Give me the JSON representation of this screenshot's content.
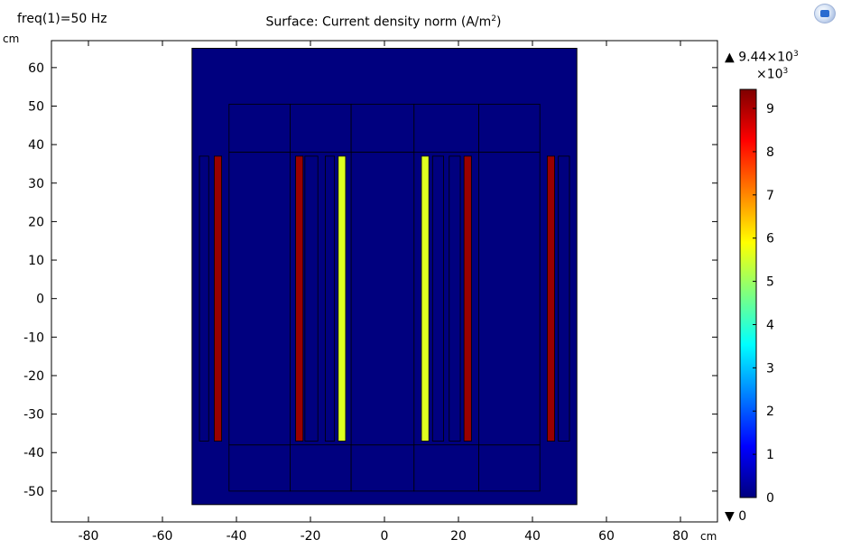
{
  "header": {
    "freq_label": "freq(1)=50 Hz",
    "title_main": "Surface: Current density norm (A/m",
    "title_sup": "2",
    "title_end": ")"
  },
  "axes": {
    "y_unit": "cm",
    "x_unit": "cm"
  },
  "colorbar": {
    "max_label": "9.44×10",
    "max_exp": "3",
    "scale_label": "×10",
    "scale_exp": "3",
    "min_label": "0",
    "ticks": [
      "0",
      "1",
      "2",
      "3",
      "4",
      "5",
      "6",
      "7",
      "8",
      "9"
    ],
    "colormap": [
      "#00007f",
      "#0000ff",
      "#007fff",
      "#00ffff",
      "#7fff7f",
      "#ffff00",
      "#ff7f00",
      "#ff0000",
      "#7f0000"
    ]
  },
  "chart_data": {
    "type": "heatmap",
    "title": "Surface: Current density norm (A/m²)",
    "xlim": [
      -90,
      90
    ],
    "ylim": [
      -58,
      67
    ],
    "xticks": [
      -80,
      -60,
      -40,
      -20,
      0,
      20,
      40,
      60,
      80
    ],
    "yticks": [
      -50,
      -40,
      -30,
      -20,
      -10,
      0,
      10,
      20,
      30,
      40,
      50,
      60
    ],
    "background_value_color": "#00007f",
    "domain_outline": {
      "x": [
        -52,
        52
      ],
      "y": [
        -53.5,
        65
      ]
    },
    "yoke_blocks": [
      {
        "x": [
          -42,
          -25.5
        ],
        "y": [
          38,
          50.5
        ]
      },
      {
        "x": [
          -25.5,
          -9
        ],
        "y": [
          38,
          50.5
        ]
      },
      {
        "x": [
          -9,
          8
        ],
        "y": [
          38,
          50.5
        ]
      },
      {
        "x": [
          8,
          25.5
        ],
        "y": [
          38,
          50.5
        ]
      },
      {
        "x": [
          25.5,
          42
        ],
        "y": [
          38,
          50.5
        ]
      },
      {
        "x": [
          -42,
          -25.5
        ],
        "y": [
          -50,
          -38
        ]
      },
      {
        "x": [
          -25.5,
          -9
        ],
        "y": [
          -50,
          -38
        ]
      },
      {
        "x": [
          -9,
          8
        ],
        "y": [
          -50,
          -38
        ]
      },
      {
        "x": [
          8,
          25.5
        ],
        "y": [
          -50,
          -38
        ]
      },
      {
        "x": [
          25.5,
          42
        ],
        "y": [
          -50,
          -38
        ]
      }
    ],
    "limbs": [
      {
        "x": [
          -42,
          -25.5
        ],
        "y": [
          -38,
          38
        ]
      },
      {
        "x": [
          -9,
          8
        ],
        "y": [
          -38,
          38
        ]
      },
      {
        "x": [
          25.5,
          42
        ],
        "y": [
          -38,
          38
        ]
      }
    ],
    "windings": [
      {
        "x": [
          -50,
          -47.5
        ],
        "y": [
          -37,
          37
        ],
        "value": 0
      },
      {
        "x": [
          -46,
          -44
        ],
        "y": [
          -37,
          37
        ],
        "value": 9.2
      },
      {
        "x": [
          -24,
          -22
        ],
        "y": [
          -37,
          37
        ],
        "value": 9.2
      },
      {
        "x": [
          -21.5,
          -18
        ],
        "y": [
          -37,
          37
        ],
        "value": 0
      },
      {
        "x": [
          -16,
          -13.5
        ],
        "y": [
          -37,
          37
        ],
        "value": 0
      },
      {
        "x": [
          -12.5,
          -10.5
        ],
        "y": [
          -37,
          37
        ],
        "value": 5.6
      },
      {
        "x": [
          10,
          12
        ],
        "y": [
          -37,
          37
        ],
        "value": 5.6
      },
      {
        "x": [
          13,
          16
        ],
        "y": [
          -37,
          37
        ],
        "value": 0
      },
      {
        "x": [
          17.5,
          20.5
        ],
        "y": [
          -37,
          37
        ],
        "value": 0
      },
      {
        "x": [
          21.5,
          23.5
        ],
        "y": [
          -37,
          37
        ],
        "value": 9.2
      },
      {
        "x": [
          44,
          46
        ],
        "y": [
          -37,
          37
        ],
        "value": 9.2
      },
      {
        "x": [
          47,
          50
        ],
        "y": [
          -37,
          37
        ],
        "value": 0
      }
    ],
    "color_range": [
      0,
      9.44
    ]
  }
}
